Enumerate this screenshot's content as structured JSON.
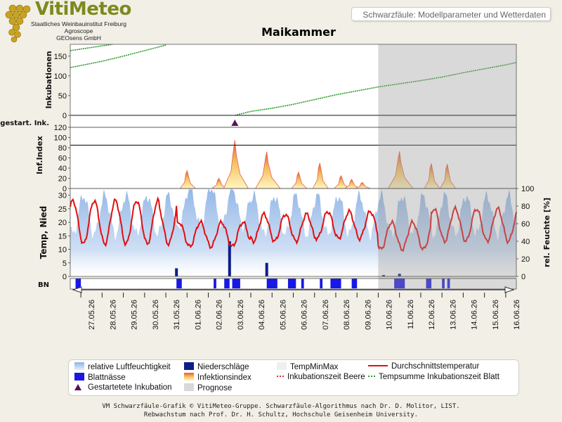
{
  "header": {
    "logo_title": "VitiMeteo",
    "logo_lines": [
      "Staatliches Weinbauinstitut Freiburg",
      "Agroscope",
      "GEOsens GmbH"
    ],
    "subtitle_box": "Schwarzfäule: Modellparameter und Wetterdaten"
  },
  "footer": {
    "line1": "VM Schwarzfäule-Grafik © VitiMeteo-Gruppe. Schwarzfäule-Algorithmus nach Dr. D. Molitor, LIST.",
    "line2": "Rebwachstum nach Prof. Dr. H. Schultz, Hochschule Geisenheim University."
  },
  "legend": [
    {
      "label": "relative Luftfeuchtigkeit",
      "symbol": "humidity",
      "color": "#a9c6ea"
    },
    {
      "label": "Niederschläge",
      "symbol": "square",
      "color": "#0b1d8a"
    },
    {
      "label": "TempMinMax",
      "symbol": "square",
      "color": "#efefef"
    },
    {
      "label": "Durchschnittstemperatur",
      "symbol": "line",
      "color": "#e01010"
    },
    {
      "label": "Blattnässe",
      "symbol": "square",
      "color": "#1818e6"
    },
    {
      "label": "Infektionsindex",
      "symbol": "infection",
      "color": "#f5d060"
    },
    {
      "label": "Inkubationszeit Beere",
      "symbol": "dot",
      "color": "#e03030"
    },
    {
      "label": "Tempsumme Inkubationszeit Blatt",
      "symbol": "dot",
      "color": "#2a9a2a"
    },
    {
      "label": "Gestartetete Inkubation",
      "symbol": "triangle",
      "color": "#5a1060"
    },
    {
      "label": "Prognose",
      "symbol": "square",
      "color": "#d8d8d8"
    }
  ],
  "chart_data": {
    "type": "multi-panel time series",
    "title": "Maikammer",
    "x_dates": [
      "27.05.26",
      "28.05.26",
      "29.05.26",
      "30.05.26",
      "31.05.26",
      "01.06.26",
      "02.06.26",
      "03.06.26",
      "04.06.26",
      "05.06.26",
      "06.06.26",
      "07.06.26",
      "08.06.26",
      "09.06.26",
      "10.06.26",
      "11.06.26",
      "12.06.26",
      "13.06.26",
      "14.06.26",
      "15.06.26",
      "16.06.26"
    ],
    "x_range": [
      "26.05.26 12:00",
      "16.06.26 12:00"
    ],
    "prognosis_start": "10.06.26 00:00",
    "panels": {
      "incubation": {
        "ylabel": "Inkubationen",
        "yticks": [
          0,
          50,
          100,
          150
        ],
        "ylim": [
          0,
          180
        ],
        "series": [
          {
            "points": [
              [
                "26.05.26 12:00",
                121
              ],
              [
                "28.05.26 00:00",
                137
              ],
              [
                "29.05.26 00:00",
                150
              ],
              [
                "30.05.26 00:00",
                164
              ],
              [
                "31.05.26 00:00",
                178
              ]
            ]
          },
          {
            "points": [
              [
                "26.05.26 12:00",
                164
              ],
              [
                "27.05.26 12:00",
                172
              ],
              [
                "28.05.26 12:00",
                180
              ]
            ]
          },
          {
            "points": [
              [
                "03.06.26 06:00",
                0
              ],
              [
                "04.06.26 00:00",
                10
              ],
              [
                "05.06.26 00:00",
                18
              ],
              [
                "06.06.26 00:00",
                28
              ],
              [
                "07.06.26 00:00",
                40
              ],
              [
                "08.06.26 00:00",
                52
              ],
              [
                "09.06.26 00:00",
                62
              ],
              [
                "10.06.26 00:00",
                72
              ],
              [
                "11.06.26 00:00",
                80
              ],
              [
                "12.06.26 00:00",
                88
              ],
              [
                "13.06.26 00:00",
                97
              ],
              [
                "14.06.26 00:00",
                108
              ],
              [
                "15.06.26 00:00",
                118
              ],
              [
                "16.06.26 00:00",
                128
              ],
              [
                "16.06.26 12:00",
                134
              ]
            ]
          }
        ]
      },
      "started_incubation": {
        "ylabel": "gestart. Ink.",
        "events": [
          "03.06.26 06:00"
        ]
      },
      "infection_index": {
        "ylabel": "Inf.Index",
        "yticks": [
          0,
          20,
          40,
          60,
          80,
          100,
          120
        ],
        "ylim": [
          0,
          120
        ],
        "threshold": 85,
        "peaks": [
          [
            "01.06.26 00:00",
            35
          ],
          [
            "02.06.26 12:00",
            20
          ],
          [
            "03.06.26 06:00",
            95
          ],
          [
            "04.06.26 18:00",
            72
          ],
          [
            "06.06.26 06:00",
            32
          ],
          [
            "07.06.26 06:00",
            50
          ],
          [
            "08.06.26 06:00",
            25
          ],
          [
            "08.06.26 18:00",
            18
          ],
          [
            "09.06.26 06:00",
            12
          ],
          [
            "11.06.26 00:00",
            73
          ],
          [
            "12.06.26 12:00",
            49
          ],
          [
            "13.06.26 06:00",
            48
          ]
        ]
      },
      "weather": {
        "ylabel": "Temp, Nied",
        "y2label": "rel. Feuchte [%]",
        "yticks": [
          0,
          5,
          10,
          15,
          20,
          25,
          30
        ],
        "y2ticks": [
          0,
          20,
          40,
          60,
          80,
          100
        ],
        "ylim": [
          0,
          32.5
        ],
        "y2lim": [
          0,
          100
        ],
        "precipitation": [
          [
            "31.05.26 12:00",
            3
          ],
          [
            "03.06.26 00:00",
            13
          ],
          [
            "04.06.26 18:00",
            5
          ],
          [
            "10.06.26 06:00",
            0.5
          ],
          [
            "11.06.26 00:00",
            1
          ]
        ]
      },
      "leaf_wetness": {
        "ylabel": "BN",
        "intervals": [
          [
            "26.05.26 18:00",
            "27.05.26 00:00"
          ],
          [
            "31.05.26 12:00",
            "31.05.26 18:00"
          ],
          [
            "02.06.26 06:00",
            "02.06.26 09:00"
          ],
          [
            "02.06.26 18:00",
            "03.06.26 00:00"
          ],
          [
            "03.06.26 03:00",
            "03.06.26 12:00"
          ],
          [
            "04.06.26 18:00",
            "05.06.26 06:00"
          ],
          [
            "05.06.26 18:00",
            "06.06.26 03:00"
          ],
          [
            "06.06.26 09:00",
            "06.06.26 12:00"
          ],
          [
            "07.06.26 06:00",
            "07.06.26 09:00"
          ],
          [
            "07.06.26 18:00",
            "08.06.26 06:00"
          ],
          [
            "08.06.26 18:00",
            "09.06.26 00:00"
          ],
          [
            "10.06.26 18:00",
            "11.06.26 06:00"
          ],
          [
            "12.06.26 06:00",
            "12.06.26 12:00"
          ],
          [
            "13.06.26 00:00",
            "13.06.26 03:00"
          ],
          [
            "13.06.26 06:00",
            "13.06.26 09:00"
          ]
        ]
      }
    }
  }
}
